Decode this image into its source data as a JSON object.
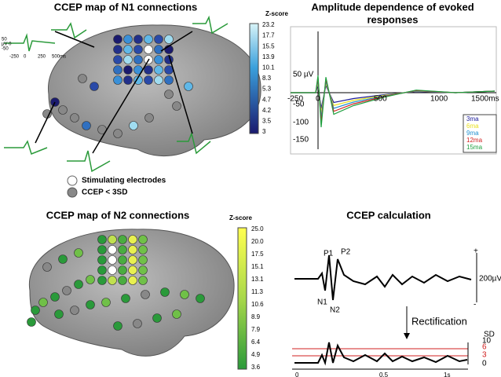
{
  "panels": {
    "n1_map": {
      "title": "CCEP map of N1 connections",
      "colorbar_title": "Z-score",
      "colorbar_ticks": [
        "23.2",
        "17.7",
        "15.5",
        "13.9",
        "10.1",
        "8.3",
        "5.3",
        "4.7",
        "4.2",
        "3.5",
        "3"
      ],
      "legend": [
        "Stimulating electrodes",
        "CCEP < 3SD"
      ],
      "inset_y_labels": [
        "50",
        "µV 0",
        "-50"
      ],
      "inset_x_labels": [
        "-250",
        "0",
        "250",
        "500ms"
      ]
    },
    "amplitude": {
      "title_lines": [
        "Amplitude dependence of evoked",
        "responses"
      ],
      "y_labels": [
        "50 µV",
        "-50",
        "-100",
        "-150"
      ],
      "x_labels": [
        "-250",
        "0",
        "500",
        "1000",
        "1500ms"
      ],
      "legend": [
        {
          "name": "3ma",
          "color": "#1a1a9a"
        },
        {
          "name": "6ma",
          "color": "#e8e020"
        },
        {
          "name": "9ma",
          "color": "#2090d0"
        },
        {
          "name": "12ma",
          "color": "#d02020"
        },
        {
          "name": "15ma",
          "color": "#20a040"
        }
      ]
    },
    "n2_map": {
      "title": "CCEP map of N2 connections",
      "colorbar_title": "Z-score",
      "colorbar_ticks": [
        "25.0",
        "20.0",
        "17.5",
        "15.1",
        "13.1",
        "11.3",
        "10.6",
        "8.9",
        "7.9",
        "6.4",
        "4.9",
        "3.6"
      ]
    },
    "calculation": {
      "title": "CCEP calculation",
      "peaks": [
        "P1",
        "P2",
        "N1",
        "N2"
      ],
      "scale_plus": "+",
      "scale_minus": "-",
      "scale_label": "200µV",
      "step": "Rectification",
      "sd_title": "SD",
      "sd_ticks": [
        "10",
        "6",
        "3",
        "0"
      ],
      "x_ticks": [
        "0",
        "0.5",
        "1s"
      ]
    }
  }
}
